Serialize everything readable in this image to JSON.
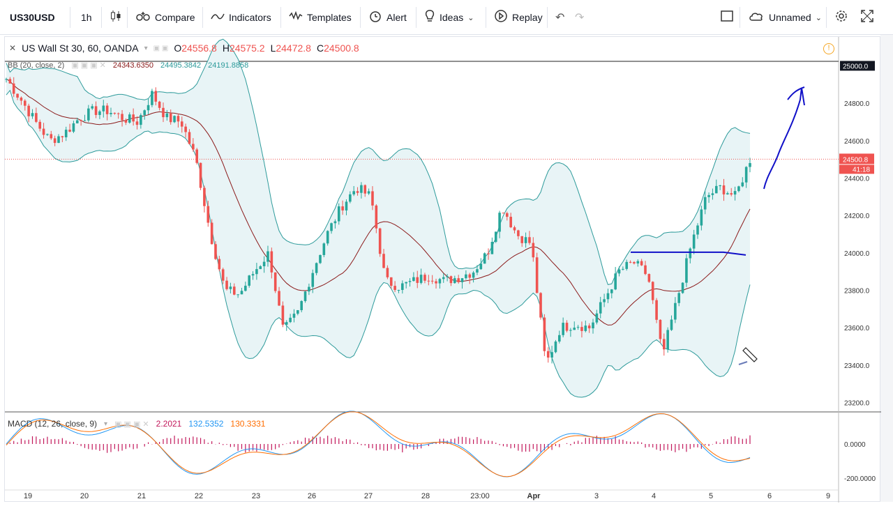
{
  "toolbar": {
    "symbol": "US30USD",
    "interval": "1h",
    "compare": "Compare",
    "indicators": "Indicators",
    "templates": "Templates",
    "alert": "Alert",
    "ideas": "Ideas",
    "replay": "Replay",
    "layout_name": "Unnamed"
  },
  "legend": {
    "title": "US Wall St 30, 60, OANDA",
    "o_label": "O",
    "o_value": "24556.8",
    "h_label": "H",
    "h_value": "24575.2",
    "l_label": "L",
    "l_value": "24472.8",
    "c_label": "C",
    "c_value": "24500.8"
  },
  "bb_legend": {
    "name": "BB (20, close, 2)",
    "v1": "24343.6350",
    "v2": "24495.3842",
    "v3": "24191.8858"
  },
  "macd_legend": {
    "name": "MACD (12, 26, close, 9)",
    "v1": "2.2021",
    "v2": "132.5352",
    "v3": "130.3331"
  },
  "price_axis": {
    "labels": [
      "25000.0",
      "24800.0",
      "24600.0",
      "24400.0",
      "24200.0",
      "24000.0",
      "23800.0",
      "23600.0",
      "23400.0",
      "23200.0"
    ],
    "last_price": "24500.8",
    "countdown": "41:18"
  },
  "macd_axis": {
    "labels": [
      "0.0000",
      "-200.0000"
    ]
  },
  "time_axis": {
    "labels": [
      "19",
      "20",
      "21",
      "22",
      "23",
      "26",
      "27",
      "28",
      "23:00",
      "Apr",
      "3",
      "4",
      "5",
      "6",
      "9"
    ]
  },
  "colors": {
    "up": "#26a69a",
    "down": "#ef5350",
    "bb_band": "#2c9a9a",
    "bb_basis": "#8b1a1a",
    "bb_fill": "#e8f4f6",
    "macd_line": "#2196f3",
    "signal_line": "#ff6d00",
    "hist": "#c2185b",
    "drawing": "#1010c8"
  },
  "chart_data": {
    "type": "candlestick",
    "title": "US Wall St 30, 60, OANDA",
    "x_labels": [
      "19",
      "20",
      "21",
      "22",
      "23",
      "26",
      "27",
      "28",
      "23:00",
      "Apr",
      "3",
      "4",
      "5",
      "6",
      "9"
    ],
    "ylim": [
      23150,
      25050
    ],
    "series": [
      {
        "name": "close_path",
        "values": [
          24930,
          24820,
          24700,
          24600,
          24640,
          24720,
          24760,
          24760,
          24720,
          24700,
          24850,
          24720,
          24700,
          24500,
          24100,
          23800,
          23780,
          23900,
          24000,
          23580,
          23680,
          23900,
          24100,
          24250,
          24350,
          24300,
          23850,
          23820,
          23850,
          23880,
          23850,
          23870,
          23900,
          24000,
          24250,
          24100,
          24050,
          23400,
          23600,
          23620,
          23600,
          23750,
          23900,
          23950,
          23880,
          23450,
          23750,
          24050,
          24300,
          24350,
          24300,
          24500
        ]
      }
    ],
    "macd_hist_range": [
      -80,
      80
    ],
    "key_levels": {
      "last_price": 24500.8,
      "horizontal_line": 24000
    }
  }
}
